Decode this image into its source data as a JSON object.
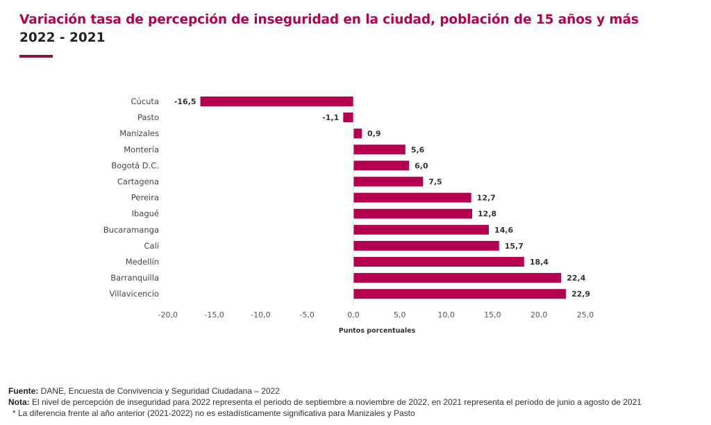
{
  "header": {
    "title": "Variación tasa de percepción de inseguridad en la ciudad, población de 15 años y más",
    "subtitle": "2022 - 2021"
  },
  "chart_data": {
    "type": "bar",
    "orientation": "horizontal",
    "title": "Variación tasa de percepción de inseguridad en la ciudad, población de 15 años y más 2022 - 2021",
    "xlabel": "Puntos porcentuales",
    "ylabel": "",
    "xlim": [
      -20,
      25
    ],
    "xticks": [
      -20,
      -15,
      -10,
      -5,
      0,
      5,
      10,
      15,
      20,
      25
    ],
    "xtick_labels": [
      "-20,0",
      "-15,0",
      "-10,0",
      "-5,0",
      "0,0",
      "5,0",
      "10,0",
      "15,0",
      "20,0",
      "25,0"
    ],
    "grid": false,
    "bar_color": "#b5004f",
    "categories": [
      "Cúcuta",
      "Pasto",
      "Manizales",
      "Montería",
      "Bogotá D.C.",
      "Cartagena",
      "Pereira",
      "Ibagué",
      "Bucaramanga",
      "Cali",
      "Medellín",
      "Barranquilla",
      "Villavicencio"
    ],
    "values": [
      -16.5,
      -1.1,
      0.9,
      5.6,
      6.0,
      7.5,
      12.7,
      12.8,
      14.6,
      15.7,
      18.4,
      22.4,
      22.9
    ],
    "value_labels": [
      "-16,5",
      "-1,1",
      "0,9",
      "5,6",
      "6,0",
      "7,5",
      "12,7",
      "12,8",
      "14,6",
      "15,7",
      "18,4",
      "22,4",
      "22,9"
    ]
  },
  "footer": {
    "source_label": "Fuente:",
    "source_text": " DANE, Encuesta de Convivencia y Seguridad Ciudadana – 2022",
    "note_label": "Nota:",
    "note_text": " El nivel de percepción de inseguridad para 2022 representa el periodo de septiembre a noviembre de 2022, en 2021 representa el período de junio a agosto de 2021",
    "asterisk_note": "* La diferencia frente al año anterior (2021-2022) no es estadísticamente significativa para Manizales y Pasto"
  }
}
